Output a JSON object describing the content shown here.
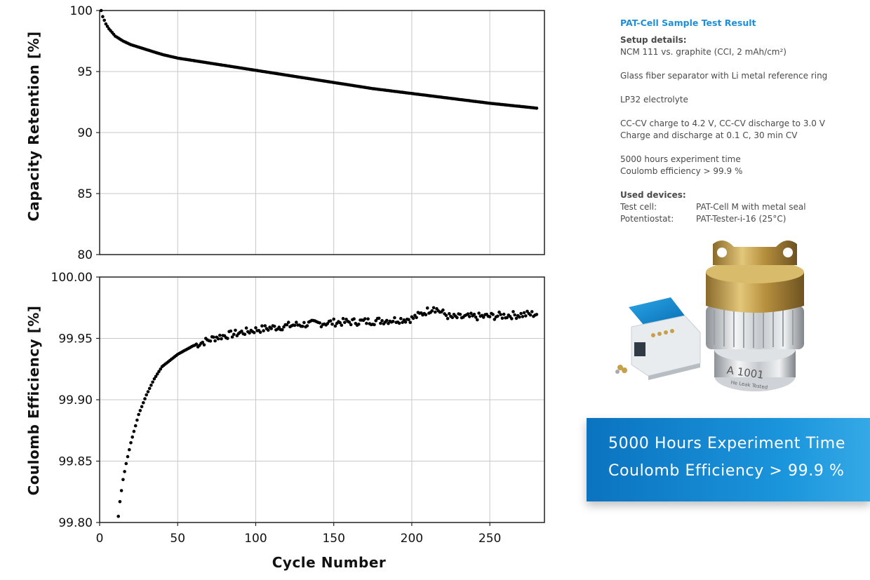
{
  "charts": {
    "top": {
      "ylabel": "Capacity Retention [%]",
      "yticks": [
        "80",
        "85",
        "90",
        "95",
        "100"
      ]
    },
    "bottom": {
      "ylabel": "Coulomb Efficiency [%]",
      "yticks": [
        "99.80",
        "99.85",
        "99.90",
        "99.95",
        "100.00"
      ],
      "xticks": [
        "0",
        "50",
        "100",
        "150",
        "200",
        "250"
      ],
      "xlabel": "Cycle Number"
    }
  },
  "chart_data": [
    {
      "type": "scatter",
      "ylabel": "Capacity Retention [%]",
      "xlim": [
        0,
        285
      ],
      "ylim": [
        80,
        100
      ],
      "grid": true,
      "x_range": [
        1,
        280
      ],
      "points": [
        [
          1,
          100.0
        ],
        [
          2,
          99.5
        ],
        [
          4,
          98.9
        ],
        [
          6,
          98.5
        ],
        [
          10,
          97.9
        ],
        [
          15,
          97.5
        ],
        [
          20,
          97.2
        ],
        [
          30,
          96.8
        ],
        [
          40,
          96.4
        ],
        [
          50,
          96.1
        ],
        [
          75,
          95.6
        ],
        [
          100,
          95.1
        ],
        [
          125,
          94.6
        ],
        [
          150,
          94.1
        ],
        [
          175,
          93.6
        ],
        [
          200,
          93.2
        ],
        [
          225,
          92.8
        ],
        [
          250,
          92.4
        ],
        [
          280,
          92.0
        ]
      ],
      "color": "#000000"
    },
    {
      "type": "scatter",
      "ylabel": "Coulomb Efficiency [%]",
      "xlabel": "Cycle Number",
      "xlim": [
        0,
        285
      ],
      "ylim": [
        99.8,
        100.0
      ],
      "grid": true,
      "x_range": [
        12,
        280
      ],
      "points": [
        [
          12,
          99.805
        ],
        [
          13,
          99.817
        ],
        [
          14,
          99.826
        ],
        [
          15,
          99.835
        ],
        [
          17,
          99.848
        ],
        [
          20,
          99.865
        ],
        [
          25,
          99.888
        ],
        [
          30,
          99.904
        ],
        [
          35,
          99.917
        ],
        [
          40,
          99.927
        ],
        [
          50,
          99.937
        ],
        [
          60,
          99.944
        ],
        [
          75,
          99.951
        ],
        [
          100,
          99.957
        ],
        [
          125,
          99.961
        ],
        [
          150,
          99.963
        ],
        [
          175,
          99.964
        ],
        [
          200,
          99.966
        ],
        [
          214,
          99.975
        ],
        [
          225,
          99.967
        ],
        [
          250,
          99.968
        ],
        [
          280,
          99.97
        ]
      ],
      "color": "#000000"
    }
  ],
  "info": {
    "title": "PAT-Cell Sample Test Result",
    "setup_heading": "Setup details:",
    "setup_lines": [
      "NCM 111 vs. graphite (CCI, 2 mAh/cm²)",
      "",
      "Glass fiber separator with Li metal reference ring",
      "",
      "LP32 electrolyte",
      "",
      "CC-CV charge to 4.2 V, CC-CV discharge to 3.0 V",
      "Charge and discharge at 0.1 C, 30 min CV",
      "",
      "5000 hours experiment time",
      "Coulomb efficiency > 99.9 %"
    ],
    "devices_heading": "Used devices:",
    "devices": [
      {
        "label": "Test cell:",
        "value": "PAT-Cell M with metal seal"
      },
      {
        "label": "Potentiostat:",
        "value": "PAT-Tester-i-16 (25°C)"
      }
    ]
  },
  "device_image": {
    "engraving": "A 1001",
    "subtext": "He Leak Tested"
  },
  "banner": {
    "line1": "5000 Hours Experiment Time",
    "line2": "Coulomb Efficiency > 99.9 %"
  }
}
